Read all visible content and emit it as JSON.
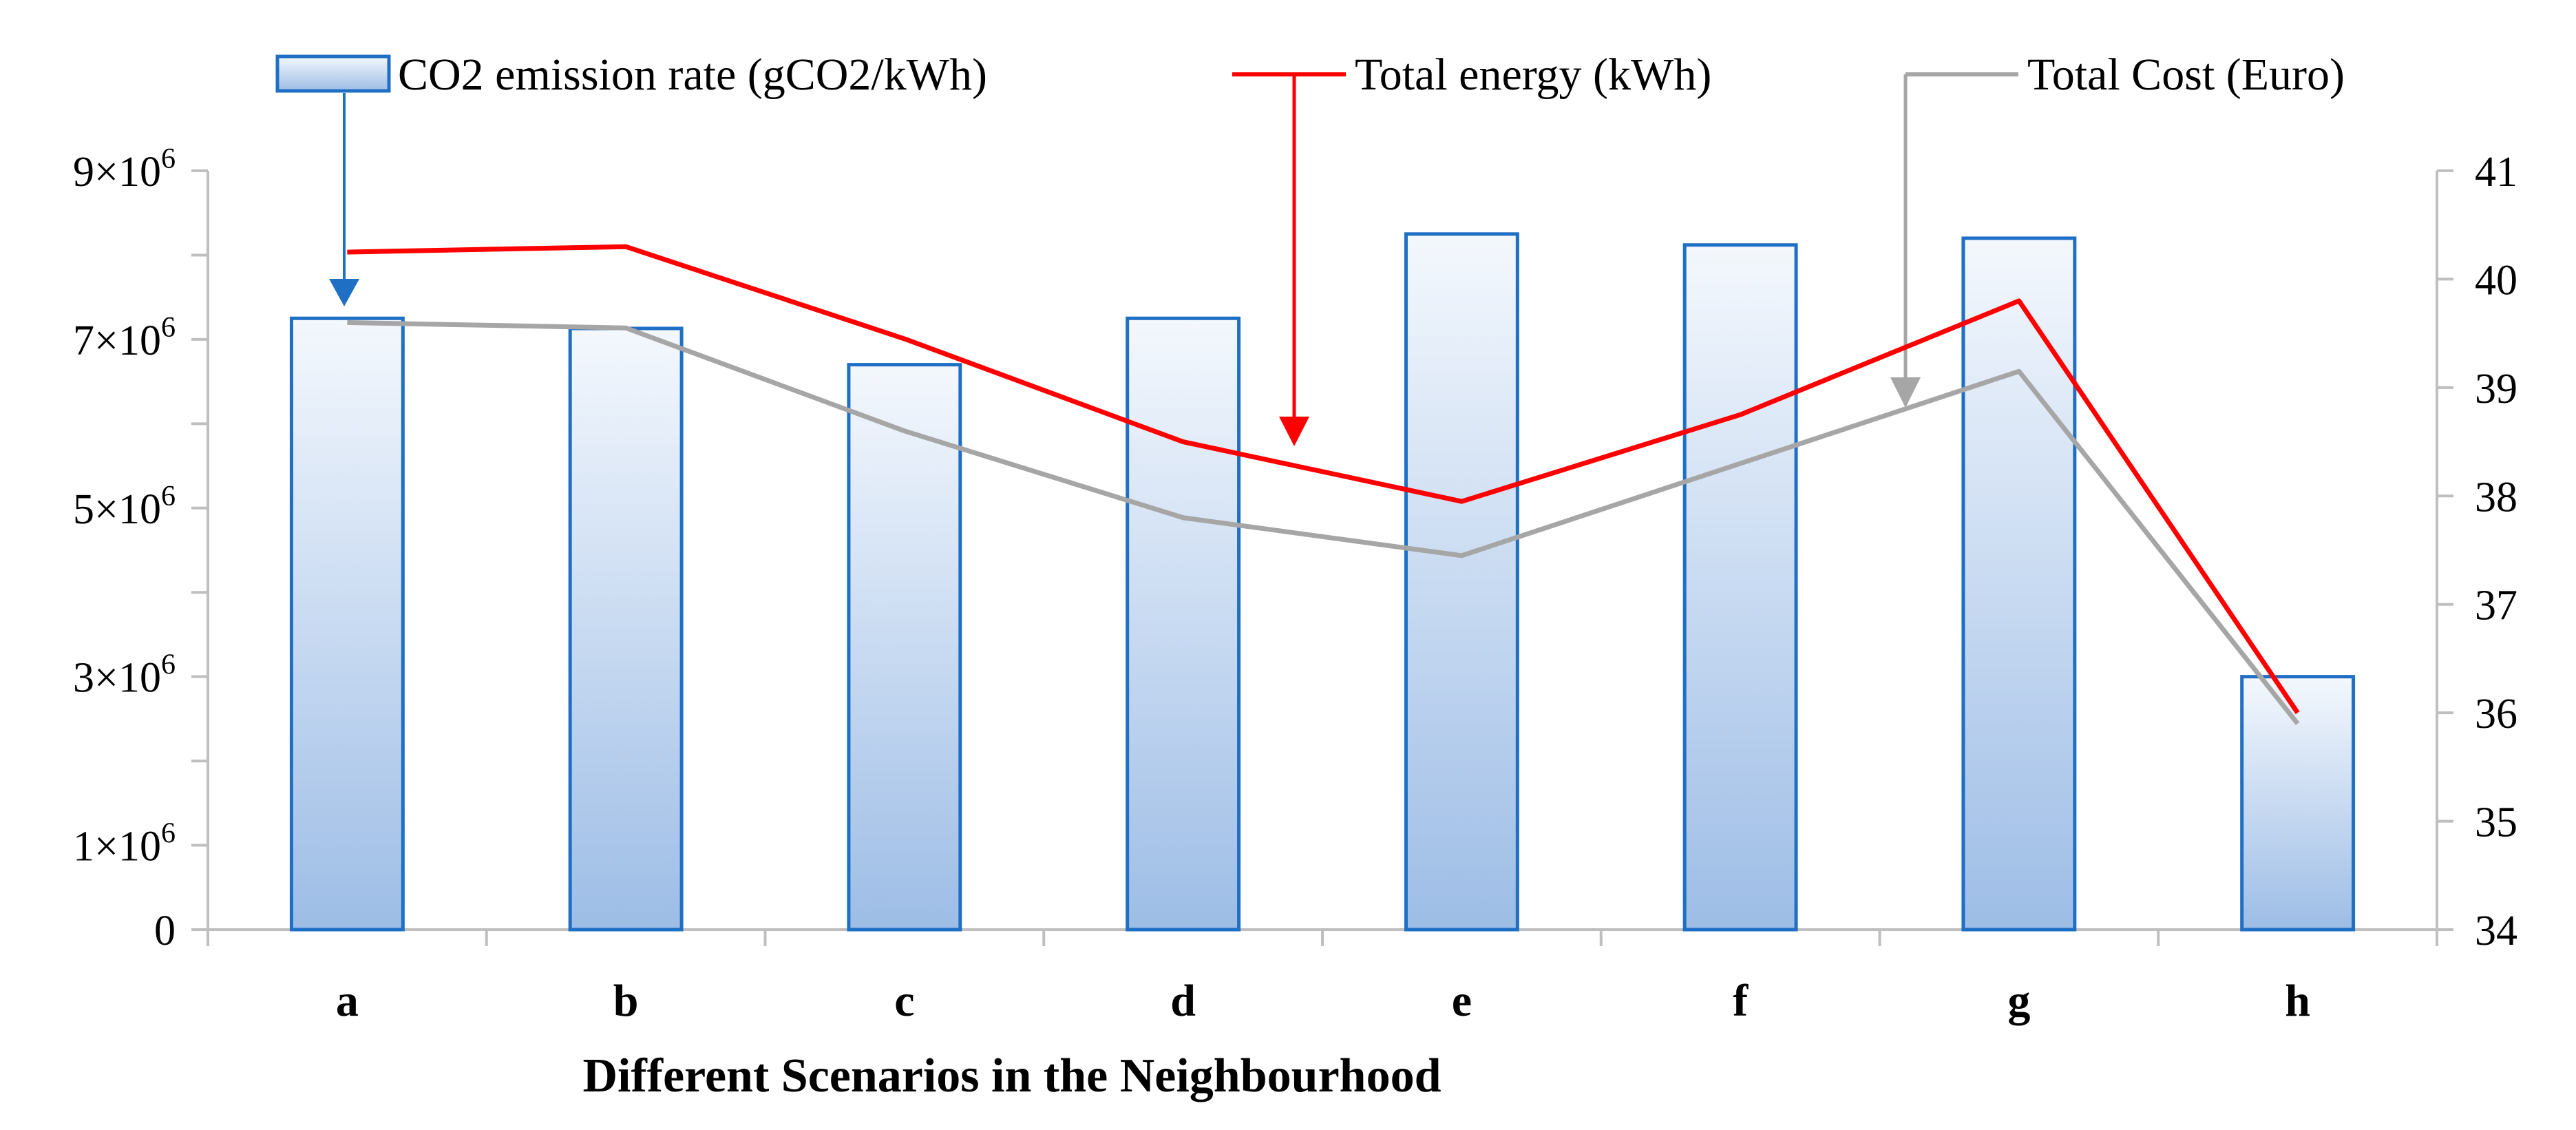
{
  "chart_data": {
    "type": "bar",
    "title": "",
    "xlabel": "Different Scenarios in the Neighbourhood",
    "ylabel": "",
    "categories": [
      "a",
      "b",
      "c",
      "d",
      "e",
      "f",
      "g",
      "h"
    ],
    "left_axis": {
      "ylim": [
        0,
        9000000
      ],
      "ticks": [
        {
          "value": 0,
          "base": "0",
          "exp": ""
        },
        {
          "value": 1000000,
          "base": "1×10",
          "exp": "6"
        },
        {
          "value": 3000000,
          "base": "3×10",
          "exp": "6"
        },
        {
          "value": 5000000,
          "base": "5×10",
          "exp": "6"
        },
        {
          "value": 7000000,
          "base": "7×10",
          "exp": "6"
        },
        {
          "value": 9000000,
          "base": "9×10",
          "exp": "6"
        }
      ],
      "minor_step": 1000000
    },
    "right_axis": {
      "ylim": [
        34,
        41
      ],
      "ticks": [
        {
          "value": 34,
          "label": "34"
        },
        {
          "value": 35,
          "label": "35"
        },
        {
          "value": 36,
          "label": "36"
        },
        {
          "value": 37,
          "label": "37"
        },
        {
          "value": 38,
          "label": "38"
        },
        {
          "value": 39,
          "label": "39"
        },
        {
          "value": 40,
          "label": "40"
        },
        {
          "value": 41,
          "label": "41"
        }
      ]
    },
    "series": [
      {
        "name": "CO2 emission rate (gCO2/kWh)",
        "kind": "bar",
        "axis": "left",
        "color": "#1f6fc4",
        "fill_top": "#f4f8fd",
        "fill_bottom": "#9dbde6",
        "values": [
          7250000,
          7130000,
          6700000,
          7250000,
          8250000,
          8120000,
          8200000,
          3000000
        ]
      },
      {
        "name": "Total energy (kWh)",
        "kind": "line",
        "axis": "right",
        "color": "#ff0000",
        "values": [
          40.25,
          40.3,
          39.45,
          38.5,
          37.95,
          38.75,
          39.8,
          36.0
        ]
      },
      {
        "name": "Total Cost (Euro)",
        "kind": "line",
        "axis": "right",
        "color": "#a6a6a6",
        "values": [
          39.6,
          39.55,
          38.6,
          37.8,
          37.45,
          38.3,
          39.15,
          35.9
        ]
      }
    ],
    "legend": {
      "placement": "top",
      "items": [
        {
          "label": "CO2 emission rate (gCO2/kWh)",
          "color": "#1f6fc4",
          "pointer_target": "a"
        },
        {
          "label": "Total energy (kWh)",
          "color": "#ff0000",
          "pointer_target": "d-e"
        },
        {
          "label": "Total Cost (Euro)",
          "color": "#a6a6a6",
          "pointer_target": "f-g"
        }
      ]
    },
    "grid": false
  }
}
